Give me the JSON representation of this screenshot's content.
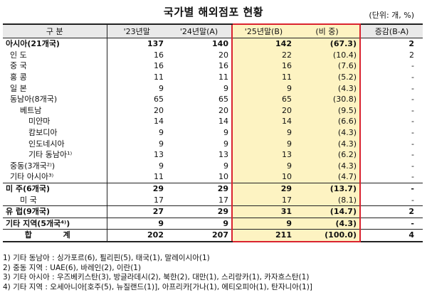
{
  "title": "국가별 해외점포 현황",
  "unit": "(단위: 개, %)",
  "headers": [
    "구 분",
    "'23년말",
    "'24년말(A)",
    "'25년말(B)",
    "(비 중)",
    "증감(B-A)"
  ],
  "rows": [
    {
      "name": "아시아(21개국)",
      "y23": "137",
      "y24": "140",
      "y25": "142",
      "share": "(67.3)",
      "change": "2",
      "style": "bold",
      "indent": 0
    },
    {
      "name": "인 도",
      "y23": "16",
      "y24": "20",
      "y25": "22",
      "share": "(10.4)",
      "change": "2",
      "indent": 1
    },
    {
      "name": "중 국",
      "y23": "16",
      "y24": "16",
      "y25": "16",
      "share": "(7.6)",
      "change": "-",
      "indent": 1
    },
    {
      "name": "홍 콩",
      "y23": "11",
      "y24": "11",
      "y25": "11",
      "share": "(5.2)",
      "change": "-",
      "indent": 1
    },
    {
      "name": "일 본",
      "y23": "9",
      "y24": "9",
      "y25": "9",
      "share": "(4.3)",
      "change": "-",
      "indent": 1
    },
    {
      "name": "동남아(8개국)",
      "y23": "65",
      "y24": "65",
      "y25": "65",
      "share": "(30.8)",
      "change": "-",
      "indent": 1
    },
    {
      "name": "베트남",
      "y23": "20",
      "y24": "20",
      "y25": "20",
      "share": "(9.5)",
      "change": "-",
      "indent": 2
    },
    {
      "name": "미얀마",
      "y23": "14",
      "y24": "14",
      "y25": "14",
      "share": "(6.6)",
      "change": "-",
      "indent": 3
    },
    {
      "name": "캄보디아",
      "y23": "9",
      "y24": "9",
      "y25": "9",
      "share": "(4.3)",
      "change": "-",
      "indent": 3
    },
    {
      "name": "인도네시아",
      "y23": "9",
      "y24": "9",
      "y25": "9",
      "share": "(4.3)",
      "change": "-",
      "indent": 3
    },
    {
      "name": "기타 동남아¹⁾",
      "y23": "13",
      "y24": "13",
      "y25": "13",
      "share": "(6.2)",
      "change": "-",
      "indent": 3
    },
    {
      "name": "중동(3개국²⁾)",
      "y23": "9",
      "y24": "9",
      "y25": "9",
      "share": "(4.3)",
      "change": "-",
      "indent": 1
    },
    {
      "name": "기타 아시아³⁾",
      "y23": "11",
      "y24": "10",
      "y25": "10",
      "share": "(4.7)",
      "change": "-",
      "indent": 1
    },
    {
      "name": "미 주(6개국)",
      "y23": "29",
      "y24": "29",
      "y25": "29",
      "share": "(13.7)",
      "change": "-",
      "style": "bold",
      "sep": true,
      "indent": 0
    },
    {
      "name": "미 국",
      "y23": "17",
      "y24": "17",
      "y25": "17",
      "share": "(8.1)",
      "change": "-",
      "indent": 2
    },
    {
      "name": "유 럽(9개국)",
      "y23": "27",
      "y24": "29",
      "y25": "31",
      "share": "(14.7)",
      "change": "2",
      "style": "bold",
      "sep": true,
      "indent": 0
    },
    {
      "name": "기타 지역(5개국⁴⁾)",
      "y23": "9",
      "y24": "9",
      "y25": "9",
      "share": "(4.3)",
      "change": "-",
      "style": "bold",
      "sep": true,
      "indent": 0
    },
    {
      "name": "합 계",
      "y23": "202",
      "y24": "207",
      "y25": "211",
      "share": "(100.0)",
      "change": "4",
      "style": "total",
      "indent": 0
    }
  ],
  "notes": [
    "1) 기타 동남아 : 싱가포르(6), 필리핀(5), 태국(1), 말레이시아(1)",
    "2) 중동 지역 : UAE(6), 바레인(2), 이란(1)",
    "3) 기타 아시아 : 우즈베키스탄(3), 방글라데시(2), 북한(2), 대만(1), 스리랑카(1), 카자흐스탄(1)",
    "4) 기타 지역 : 오세아니아[호주(5), 뉴질랜드(1)], 아프리카[가나(1), 에티오피아(1), 탄자니아(1)]"
  ]
}
